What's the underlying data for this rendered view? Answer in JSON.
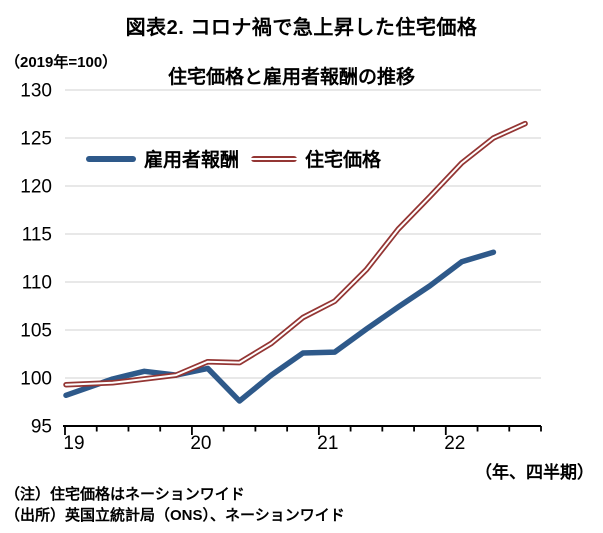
{
  "title": "図表2. コロナ禍で急上昇した住宅価格",
  "unit_label": "（2019年=100）",
  "chart_subtitle": "住宅価格と雇用者報酬の推移",
  "x_axis_unit": "（年、四半期）",
  "notes": {
    "note1": "（注）住宅価格はネーションワイド",
    "note2": "（出所）英国立統計局（ONS）、ネーションワイド"
  },
  "legend": [
    {
      "label": "雇用者報酬",
      "color": "#2E598A",
      "style": "solid"
    },
    {
      "label": "住宅価格",
      "color": "#943634",
      "style": "double-outline"
    }
  ],
  "colors": {
    "comp_line": "#2E598A",
    "house_line": "#943634",
    "house_line_core": "#FFFFFF",
    "gridline": "#D9D9D9",
    "axis": "#000000",
    "text": "#000000"
  },
  "chart_data": {
    "type": "line",
    "title": "住宅価格と雇用者報酬の推移",
    "index_base": "2019年=100",
    "categories": [
      "2019Q1",
      "2019Q2",
      "2019Q3",
      "2019Q4",
      "2020Q1",
      "2020Q2",
      "2020Q3",
      "2020Q4",
      "2021Q1",
      "2021Q2",
      "2021Q3",
      "2021Q4",
      "2022Q1",
      "2022Q2",
      "2022Q3"
    ],
    "series": [
      {
        "name": "雇用者報酬",
        "color": "#2E598A",
        "values": [
          98.2,
          99.9,
          100.7,
          100.3,
          101.0,
          97.6,
          100.3,
          102.6,
          102.7,
          105.1,
          107.4,
          109.6,
          112.1,
          113.1,
          null
        ]
      },
      {
        "name": "住宅価格",
        "color": "#943634",
        "values": [
          99.3,
          99.5,
          99.9,
          100.3,
          101.7,
          101.6,
          103.6,
          106.3,
          108.0,
          111.3,
          115.5,
          118.9,
          122.4,
          125.0,
          126.5
        ]
      }
    ],
    "ylim": [
      95,
      130
    ],
    "yticks": [
      95,
      100,
      105,
      110,
      115,
      120,
      125,
      130
    ],
    "x_year_labels": [
      "19",
      "20",
      "21",
      "22"
    ],
    "x_minor_ticks": "quarterly",
    "grid": "horizontal",
    "legend_position": "inside-top-left",
    "xlabel": "（年、四半期）",
    "ylabel": "（2019年=100）"
  }
}
